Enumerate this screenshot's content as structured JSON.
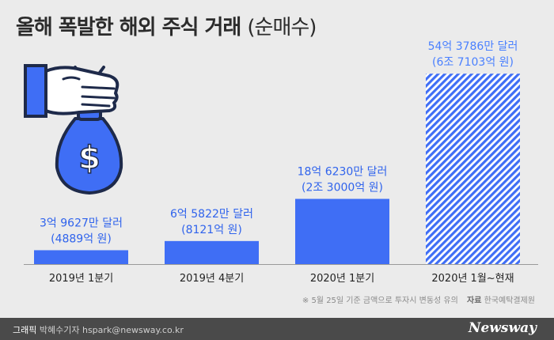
{
  "header": {
    "title_main": "올해 폭발한 해외 주식 거래",
    "title_sub": "(순매수)"
  },
  "colors": {
    "bar": "#3f6ef5",
    "bar_hatch": "#3f6ef5",
    "label": "#2f63ec",
    "highlight_label": "#4a80ff",
    "background": "#ebebeb"
  },
  "chart_data": {
    "type": "bar",
    "title": "올해 폭발한 해외 주식 거래 (순매수)",
    "categories": [
      "2019년 1분기",
      "2019년 4분기",
      "2020년 1분기",
      "2020년 1월~현재"
    ],
    "series": [
      {
        "values": [
          396270000,
          658220000,
          1862300000,
          5437860000
        ],
        "unit": "달러",
        "data_labels": [
          "3억 9627만 달러",
          "6억 5822만 달러",
          "18억 6230만 달러",
          "54억 3786만 달러"
        ],
        "data_labels_krw": [
          "(4889억 원)",
          "(8121억 원)",
          "(2조 3000억 원)",
          "(6조 7103억 원)"
        ]
      }
    ],
    "highlight_index": 3,
    "ylim": [
      0,
      5600000000
    ],
    "grid": false,
    "legend": "none"
  },
  "icon": "money-bag-hand-icon",
  "note": {
    "text": "※  5월 25일 기준 금액으로 투자시 변동성 유의",
    "source_label": "자료",
    "source": "한국예탁결제원"
  },
  "footer": {
    "credit_label": "그래픽",
    "credit": "박혜수기자 hspark@newsway.co.kr",
    "logo": "Newsway"
  }
}
